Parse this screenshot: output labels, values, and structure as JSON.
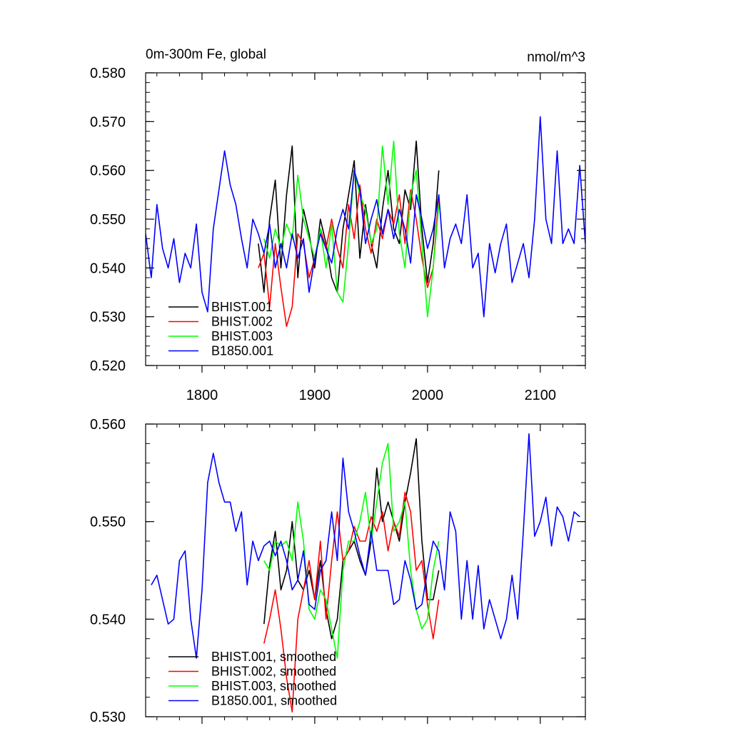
{
  "chart_data": [
    {
      "type": "line",
      "title": "0m-300m Fe, global",
      "units": "nmol/m^3",
      "xlim": [
        1750,
        2140
      ],
      "ylim": [
        0.52,
        0.58
      ],
      "x_ticks": [
        1800,
        1900,
        2000,
        2100
      ],
      "x_tick_labels": [
        "1800",
        "1900",
        "2000",
        "2100"
      ],
      "y_ticks": [
        0.52,
        0.53,
        0.54,
        0.55,
        0.56,
        0.57,
        0.58
      ],
      "y_tick_labels": [
        "0.520",
        "0.530",
        "0.540",
        "0.550",
        "0.560",
        "0.570",
        "0.580"
      ],
      "legend_position": "bottom-left",
      "series": [
        {
          "name": "BHIST.001",
          "color": "#000000",
          "x": [
            1850,
            1855,
            1860,
            1865,
            1870,
            1875,
            1880,
            1885,
            1890,
            1895,
            1900,
            1905,
            1910,
            1915,
            1920,
            1925,
            1930,
            1935,
            1940,
            1945,
            1950,
            1955,
            1960,
            1965,
            1970,
            1975,
            1980,
            1985,
            1990,
            1995,
            2000,
            2005,
            2010
          ],
          "y": [
            0.545,
            0.535,
            0.55,
            0.558,
            0.54,
            0.555,
            0.565,
            0.538,
            0.552,
            0.547,
            0.54,
            0.55,
            0.545,
            0.538,
            0.535,
            0.548,
            0.555,
            0.562,
            0.542,
            0.553,
            0.545,
            0.54,
            0.552,
            0.56,
            0.548,
            0.545,
            0.556,
            0.552,
            0.566,
            0.548,
            0.537,
            0.545,
            0.56
          ]
        },
        {
          "name": "BHIST.002",
          "color": "#ff0000",
          "x": [
            1850,
            1855,
            1860,
            1865,
            1870,
            1875,
            1880,
            1885,
            1890,
            1895,
            1900,
            1905,
            1910,
            1915,
            1920,
            1925,
            1930,
            1935,
            1940,
            1945,
            1950,
            1955,
            1960,
            1965,
            1970,
            1975,
            1980,
            1985,
            1990,
            1995,
            2000,
            2005,
            2010
          ],
          "y": [
            0.54,
            0.543,
            0.532,
            0.545,
            0.536,
            0.528,
            0.532,
            0.547,
            0.545,
            0.538,
            0.542,
            0.548,
            0.544,
            0.55,
            0.544,
            0.54,
            0.553,
            0.546,
            0.557,
            0.548,
            0.543,
            0.55,
            0.546,
            0.552,
            0.549,
            0.555,
            0.545,
            0.556,
            0.55,
            0.542,
            0.536,
            0.54,
            0.555
          ]
        },
        {
          "name": "BHIST.003",
          "color": "#00ff00",
          "x": [
            1855,
            1860,
            1865,
            1870,
            1875,
            1880,
            1885,
            1890,
            1895,
            1900,
            1905,
            1910,
            1915,
            1920,
            1925,
            1930,
            1935,
            1940,
            1945,
            1950,
            1955,
            1960,
            1965,
            1970,
            1975,
            1980,
            1985,
            1990,
            1995,
            2000,
            2005,
            2010
          ],
          "y": [
            0.546,
            0.542,
            0.548,
            0.544,
            0.549,
            0.546,
            0.559,
            0.55,
            0.546,
            0.542,
            0.548,
            0.54,
            0.549,
            0.535,
            0.533,
            0.545,
            0.56,
            0.555,
            0.552,
            0.545,
            0.548,
            0.565,
            0.553,
            0.566,
            0.547,
            0.54,
            0.555,
            0.56,
            0.545,
            0.53,
            0.54,
            0.553
          ]
        },
        {
          "name": "B1850.001",
          "color": "#0000ff",
          "x": [
            1750,
            1755,
            1760,
            1765,
            1770,
            1775,
            1780,
            1785,
            1790,
            1795,
            1800,
            1805,
            1810,
            1815,
            1820,
            1825,
            1830,
            1835,
            1840,
            1845,
            1850,
            1855,
            1860,
            1865,
            1870,
            1875,
            1880,
            1885,
            1890,
            1895,
            1900,
            1905,
            1910,
            1915,
            1920,
            1925,
            1930,
            1935,
            1940,
            1945,
            1950,
            1955,
            1960,
            1965,
            1970,
            1975,
            1980,
            1985,
            1990,
            1995,
            2000,
            2005,
            2010,
            2015,
            2020,
            2025,
            2030,
            2035,
            2040,
            2045,
            2050,
            2055,
            2060,
            2065,
            2070,
            2075,
            2080,
            2085,
            2090,
            2095,
            2100,
            2105,
            2110,
            2115,
            2120,
            2125,
            2130,
            2135,
            2140
          ],
          "y": [
            0.547,
            0.538,
            0.553,
            0.544,
            0.54,
            0.546,
            0.537,
            0.543,
            0.54,
            0.549,
            0.535,
            0.531,
            0.548,
            0.556,
            0.564,
            0.557,
            0.553,
            0.546,
            0.54,
            0.55,
            0.547,
            0.543,
            0.549,
            0.54,
            0.545,
            0.54,
            0.547,
            0.542,
            0.546,
            0.535,
            0.542,
            0.547,
            0.544,
            0.541,
            0.548,
            0.552,
            0.548,
            0.56,
            0.556,
            0.545,
            0.55,
            0.554,
            0.547,
            0.552,
            0.546,
            0.552,
            0.548,
            0.541,
            0.555,
            0.55,
            0.544,
            0.548,
            0.555,
            0.54,
            0.546,
            0.549,
            0.545,
            0.555,
            0.54,
            0.543,
            0.53,
            0.545,
            0.539,
            0.545,
            0.549,
            0.537,
            0.541,
            0.545,
            0.538,
            0.55,
            0.571,
            0.55,
            0.545,
            0.564,
            0.545,
            0.548,
            0.545,
            0.561,
            0.545
          ]
        }
      ]
    },
    {
      "type": "line",
      "xlim": [
        1750,
        2140
      ],
      "ylim": [
        0.53,
        0.56
      ],
      "x_ticks": [
        1800,
        1900,
        2000,
        2100
      ],
      "y_ticks": [
        0.53,
        0.54,
        0.55,
        0.56
      ],
      "y_tick_labels": [
        "0.530",
        "0.540",
        "0.550",
        "0.560"
      ],
      "legend_position": "bottom-left",
      "series": [
        {
          "name": "BHIST.001, smoothed",
          "color": "#000000",
          "x": [
            1855,
            1860,
            1865,
            1870,
            1875,
            1880,
            1885,
            1890,
            1895,
            1900,
            1905,
            1910,
            1915,
            1920,
            1925,
            1930,
            1935,
            1940,
            1945,
            1950,
            1955,
            1960,
            1965,
            1970,
            1975,
            1980,
            1985,
            1990,
            1995,
            2000,
            2005,
            2010
          ],
          "y": [
            0.5395,
            0.5455,
            0.549,
            0.543,
            0.545,
            0.55,
            0.544,
            0.543,
            0.545,
            0.542,
            0.546,
            0.541,
            0.538,
            0.54,
            0.546,
            0.547,
            0.548,
            0.546,
            0.5445,
            0.548,
            0.5555,
            0.55,
            0.552,
            0.55,
            0.548,
            0.552,
            0.555,
            0.5585,
            0.548,
            0.542,
            0.542,
            0.545
          ]
        },
        {
          "name": "BHIST.002, smoothed",
          "color": "#ff0000",
          "x": [
            1855,
            1860,
            1865,
            1870,
            1875,
            1880,
            1885,
            1890,
            1895,
            1900,
            1905,
            1910,
            1915,
            1920,
            1925,
            1930,
            1935,
            1940,
            1945,
            1950,
            1955,
            1960,
            1965,
            1970,
            1975,
            1980,
            1985,
            1990,
            1995,
            2000,
            2005,
            2010
          ],
          "y": [
            0.5375,
            0.54,
            0.543,
            0.539,
            0.534,
            0.5305,
            0.54,
            0.543,
            0.546,
            0.542,
            0.548,
            0.54,
            0.546,
            0.551,
            0.546,
            0.547,
            0.5495,
            0.548,
            0.548,
            0.5505,
            0.549,
            0.551,
            0.547,
            0.55,
            0.5485,
            0.553,
            0.551,
            0.545,
            0.546,
            0.5415,
            0.538,
            0.542
          ]
        },
        {
          "name": "BHIST.003, smoothed",
          "color": "#00ff00",
          "x": [
            1855,
            1860,
            1865,
            1870,
            1875,
            1880,
            1885,
            1890,
            1895,
            1900,
            1905,
            1910,
            1915,
            1920,
            1925,
            1930,
            1935,
            1940,
            1945,
            1950,
            1955,
            1960,
            1965,
            1970,
            1975,
            1980,
            1985,
            1990,
            1995,
            2000,
            2005,
            2010
          ],
          "y": [
            0.546,
            0.545,
            0.548,
            0.5475,
            0.548,
            0.546,
            0.552,
            0.548,
            0.541,
            0.54,
            0.543,
            0.542,
            0.539,
            0.536,
            0.545,
            0.548,
            0.548,
            0.55,
            0.553,
            0.548,
            0.552,
            0.556,
            0.558,
            0.549,
            0.55,
            0.552,
            0.545,
            0.541,
            0.539,
            0.54,
            0.545,
            0.548
          ]
        },
        {
          "name": "B1850.001, smoothed",
          "color": "#0000ff",
          "x": [
            1755,
            1760,
            1765,
            1770,
            1775,
            1780,
            1785,
            1790,
            1795,
            1800,
            1805,
            1810,
            1815,
            1820,
            1825,
            1830,
            1835,
            1840,
            1845,
            1850,
            1855,
            1860,
            1865,
            1870,
            1875,
            1880,
            1885,
            1890,
            1895,
            1900,
            1905,
            1910,
            1915,
            1920,
            1925,
            1930,
            1935,
            1940,
            1945,
            1950,
            1955,
            1960,
            1965,
            1970,
            1975,
            1980,
            1985,
            1990,
            1995,
            2000,
            2005,
            2010,
            2015,
            2020,
            2025,
            2030,
            2035,
            2040,
            2045,
            2050,
            2055,
            2060,
            2065,
            2070,
            2075,
            2080,
            2085,
            2090,
            2095,
            2100,
            2105,
            2110,
            2115,
            2120,
            2125,
            2130,
            2135
          ],
          "y": [
            0.5435,
            0.5445,
            0.542,
            0.5395,
            0.54,
            0.546,
            0.547,
            0.54,
            0.536,
            0.543,
            0.554,
            0.557,
            0.554,
            0.552,
            0.552,
            0.549,
            0.551,
            0.5435,
            0.548,
            0.546,
            0.5475,
            0.548,
            0.5465,
            0.548,
            0.546,
            0.543,
            0.544,
            0.547,
            0.5415,
            0.541,
            0.545,
            0.546,
            0.551,
            0.546,
            0.5565,
            0.551,
            0.549,
            0.5465,
            0.5445,
            0.549,
            0.545,
            0.545,
            0.545,
            0.5415,
            0.542,
            0.546,
            0.544,
            0.541,
            0.5415,
            0.545,
            0.548,
            0.547,
            0.543,
            0.551,
            0.549,
            0.54,
            0.546,
            0.54,
            0.5455,
            0.539,
            0.542,
            0.54,
            0.538,
            0.54,
            0.5445,
            0.54,
            0.549,
            0.559,
            0.5485,
            0.55,
            0.5525,
            0.5475,
            0.5515,
            0.5505,
            0.548,
            0.551,
            0.5505
          ]
        }
      ]
    }
  ]
}
